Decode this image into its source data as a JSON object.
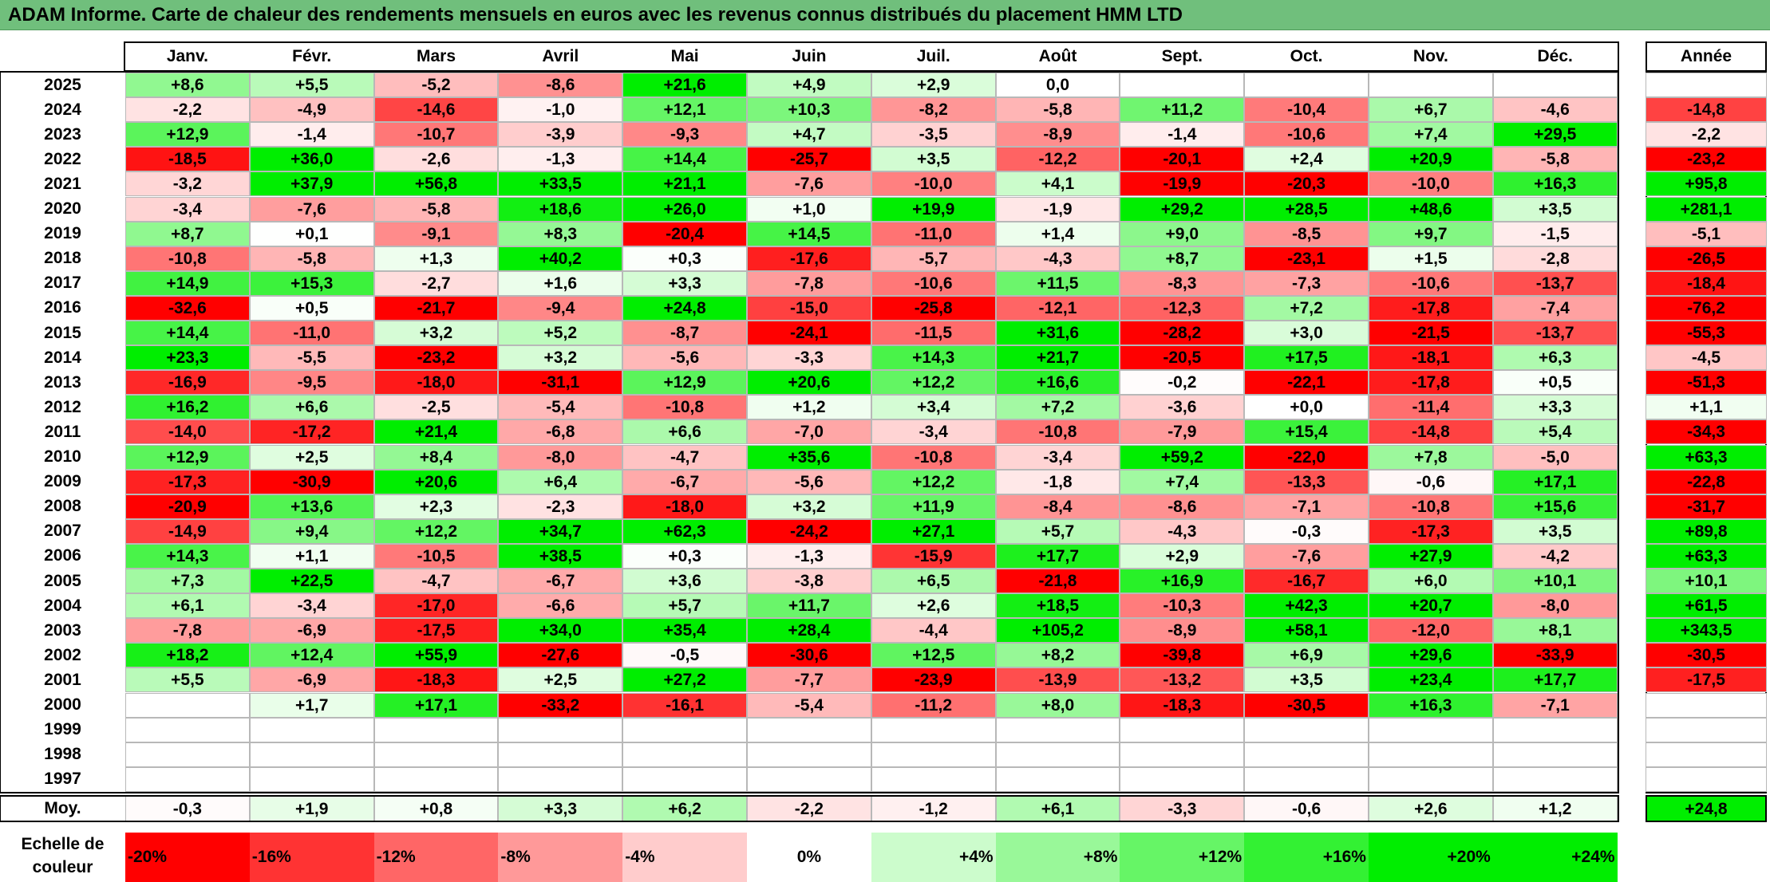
{
  "title": "ADAM Informe. Carte de chaleur des rendements mensuels en euros avec les revenus connus distribués du placement HMM LTD",
  "chart_data": {
    "type": "heatmap",
    "columns": [
      "Janv.",
      "Févr.",
      "Mars",
      "Avril",
      "Mai",
      "Juin",
      "Juil.",
      "Août",
      "Sept.",
      "Oct.",
      "Nov.",
      "Déc."
    ],
    "year_label": "Année",
    "rows": [
      {
        "label": "2025",
        "values": [
          "+8,6",
          "+5,5",
          "-5,2",
          "-8,6",
          "+21,6",
          "+4,9",
          "+2,9",
          "0,0",
          "",
          "",
          "",
          ""
        ],
        "year": ""
      },
      {
        "label": "2024",
        "values": [
          "-2,2",
          "-4,9",
          "-14,6",
          "-1,0",
          "+12,1",
          "+10,3",
          "-8,2",
          "-5,8",
          "+11,2",
          "-10,4",
          "+6,7",
          "-4,6"
        ],
        "year": "-14,8"
      },
      {
        "label": "2023",
        "values": [
          "+12,9",
          "-1,4",
          "-10,7",
          "-3,9",
          "-9,3",
          "+4,7",
          "-3,5",
          "-8,9",
          "-1,4",
          "-10,6",
          "+7,4",
          "+29,5"
        ],
        "year": "-2,2"
      },
      {
        "label": "2022",
        "values": [
          "-18,5",
          "+36,0",
          "-2,6",
          "-1,3",
          "+14,4",
          "-25,7",
          "+3,5",
          "-12,2",
          "-20,1",
          "+2,4",
          "+20,9",
          "-5,8"
        ],
        "year": "-23,2"
      },
      {
        "label": "2021",
        "values": [
          "-3,2",
          "+37,9",
          "+56,8",
          "+33,5",
          "+21,1",
          "-7,6",
          "-10,0",
          "+4,1",
          "-19,9",
          "-20,3",
          "-10,0",
          "+16,3"
        ],
        "year": "+95,8"
      },
      {
        "label": "2020",
        "values": [
          "-3,4",
          "-7,6",
          "-5,8",
          "+18,6",
          "+26,0",
          "+1,0",
          "+19,9",
          "-1,9",
          "+29,2",
          "+28,5",
          "+48,6",
          "+3,5"
        ],
        "year": "+281,1"
      },
      {
        "label": "2019",
        "values": [
          "+8,7",
          "+0,1",
          "-9,1",
          "+8,3",
          "-20,4",
          "+14,5",
          "-11,0",
          "+1,4",
          "+9,0",
          "-8,5",
          "+9,7",
          "-1,5"
        ],
        "year": "-5,1"
      },
      {
        "label": "2018",
        "values": [
          "-10,8",
          "-5,8",
          "+1,3",
          "+40,2",
          "+0,3",
          "-17,6",
          "-5,7",
          "-4,3",
          "+8,7",
          "-23,1",
          "+1,5",
          "-2,8"
        ],
        "year": "-26,5"
      },
      {
        "label": "2017",
        "values": [
          "+14,9",
          "+15,3",
          "-2,7",
          "+1,6",
          "+3,3",
          "-7,8",
          "-10,6",
          "+11,5",
          "-8,3",
          "-7,3",
          "-10,6",
          "-13,7"
        ],
        "year": "-18,4"
      },
      {
        "label": "2016",
        "values": [
          "-32,6",
          "+0,5",
          "-21,7",
          "-9,4",
          "+24,8",
          "-15,0",
          "-25,8",
          "-12,1",
          "-12,3",
          "+7,2",
          "-17,8",
          "-7,4"
        ],
        "year": "-76,2"
      },
      {
        "label": "2015",
        "values": [
          "+14,4",
          "-11,0",
          "+3,2",
          "+5,2",
          "-8,7",
          "-24,1",
          "-11,5",
          "+31,6",
          "-28,2",
          "+3,0",
          "-21,5",
          "-13,7"
        ],
        "year": "-55,3"
      },
      {
        "label": "2014",
        "values": [
          "+23,3",
          "-5,5",
          "-23,2",
          "+3,2",
          "-5,6",
          "-3,3",
          "+14,3",
          "+21,7",
          "-20,5",
          "+17,5",
          "-18,1",
          "+6,3"
        ],
        "year": "-4,5"
      },
      {
        "label": "2013",
        "values": [
          "-16,9",
          "-9,5",
          "-18,0",
          "-31,1",
          "+12,9",
          "+20,6",
          "+12,2",
          "+16,6",
          "-0,2",
          "-22,1",
          "-17,8",
          "+0,5"
        ],
        "year": "-51,3"
      },
      {
        "label": "2012",
        "values": [
          "+16,2",
          "+6,6",
          "-2,5",
          "-5,4",
          "-10,8",
          "+1,2",
          "+3,4",
          "+7,2",
          "-3,6",
          "+0,0",
          "-11,4",
          "+3,3"
        ],
        "year": "+1,1"
      },
      {
        "label": "2011",
        "values": [
          "-14,0",
          "-17,2",
          "+21,4",
          "-6,8",
          "+6,6",
          "-7,0",
          "-3,4",
          "-10,8",
          "-7,9",
          "+15,4",
          "-14,8",
          "+5,4"
        ],
        "year": "-34,3"
      },
      {
        "label": "2010",
        "values": [
          "+12,9",
          "+2,5",
          "+8,4",
          "-8,0",
          "-4,7",
          "+35,6",
          "-10,8",
          "-3,4",
          "+59,2",
          "-22,0",
          "+7,8",
          "-5,0"
        ],
        "year": "+63,3"
      },
      {
        "label": "2009",
        "values": [
          "-17,3",
          "-30,9",
          "+20,6",
          "+6,4",
          "-6,7",
          "-5,6",
          "+12,2",
          "-1,8",
          "+7,4",
          "-13,3",
          "-0,6",
          "+17,1"
        ],
        "year": "-22,8"
      },
      {
        "label": "2008",
        "values": [
          "-20,9",
          "+13,6",
          "+2,3",
          "-2,3",
          "-18,0",
          "+3,2",
          "+11,9",
          "-8,4",
          "-8,6",
          "-7,1",
          "-10,8",
          "+15,6"
        ],
        "year": "-31,7"
      },
      {
        "label": "2007",
        "values": [
          "-14,9",
          "+9,4",
          "+12,2",
          "+34,7",
          "+62,3",
          "-24,2",
          "+27,1",
          "+5,7",
          "-4,3",
          "-0,3",
          "-17,3",
          "+3,5"
        ],
        "year": "+89,8"
      },
      {
        "label": "2006",
        "values": [
          "+14,3",
          "+1,1",
          "-10,5",
          "+38,5",
          "+0,3",
          "-1,3",
          "-15,9",
          "+17,7",
          "+2,9",
          "-7,6",
          "+27,9",
          "-4,2"
        ],
        "year": "+63,3"
      },
      {
        "label": "2005",
        "values": [
          "+7,3",
          "+22,5",
          "-4,7",
          "-6,7",
          "+3,6",
          "-3,8",
          "+6,5",
          "-21,8",
          "+16,9",
          "-16,7",
          "+6,0",
          "+10,1"
        ],
        "year": "+10,1"
      },
      {
        "label": "2004",
        "values": [
          "+6,1",
          "-3,4",
          "-17,0",
          "-6,6",
          "+5,7",
          "+11,7",
          "+2,6",
          "+18,5",
          "-10,3",
          "+42,3",
          "+20,7",
          "-8,0"
        ],
        "year": "+61,5"
      },
      {
        "label": "2003",
        "values": [
          "-7,8",
          "-6,9",
          "-17,5",
          "+34,0",
          "+35,4",
          "+28,4",
          "-4,4",
          "+105,2",
          "-8,9",
          "+58,1",
          "-12,0",
          "+8,1"
        ],
        "year": "+343,5"
      },
      {
        "label": "2002",
        "values": [
          "+18,2",
          "+12,4",
          "+55,9",
          "-27,6",
          "-0,5",
          "-30,6",
          "+12,5",
          "+8,2",
          "-39,8",
          "+6,9",
          "+29,6",
          "-33,9"
        ],
        "year": "-30,5"
      },
      {
        "label": "2001",
        "values": [
          "+5,5",
          "-6,9",
          "-18,3",
          "+2,5",
          "+27,2",
          "-7,7",
          "-23,9",
          "-13,9",
          "-13,2",
          "+3,5",
          "+23,4",
          "+17,7"
        ],
        "year": "-17,5"
      },
      {
        "label": "2000",
        "values": [
          "",
          "+1,7",
          "+17,1",
          "-33,2",
          "-16,1",
          "-5,4",
          "-11,2",
          "+8,0",
          "-18,3",
          "-30,5",
          "+16,3",
          "-7,1"
        ],
        "year": ""
      },
      {
        "label": "1999",
        "values": [
          "",
          "",
          "",
          "",
          "",
          "",
          "",
          "",
          "",
          "",
          "",
          ""
        ],
        "year": ""
      },
      {
        "label": "1998",
        "values": [
          "",
          "",
          "",
          "",
          "",
          "",
          "",
          "",
          "",
          "",
          "",
          ""
        ],
        "year": ""
      },
      {
        "label": "1997",
        "values": [
          "",
          "",
          "",
          "",
          "",
          "",
          "",
          "",
          "",
          "",
          "",
          ""
        ],
        "year": ""
      }
    ],
    "average": {
      "label": "Moy.",
      "values": [
        "-0,3",
        "+1,9",
        "+0,8",
        "+3,3",
        "+6,2",
        "-2,2",
        "-1,2",
        "+6,1",
        "-3,3",
        "-0,6",
        "+2,6",
        "+1,2"
      ],
      "year": "+24,8"
    },
    "scale": {
      "label": "Echelle de couleur",
      "steps": [
        {
          "label": "-20%",
          "value": -20
        },
        {
          "label": "-16%",
          "value": -16
        },
        {
          "label": "-12%",
          "value": -12
        },
        {
          "label": "-8%",
          "value": -8
        },
        {
          "label": "-4%",
          "value": -4
        },
        {
          "label": "0%",
          "value": 0
        },
        {
          "label": "+4%",
          "value": 4
        },
        {
          "label": "+8%",
          "value": 8
        },
        {
          "label": "+12%",
          "value": 12
        },
        {
          "label": "+16%",
          "value": 16
        },
        {
          "label": "+20%",
          "value": 20
        },
        {
          "label": "+24%",
          "value": 24
        }
      ]
    },
    "colors": {
      "negative_max": "#ff0000",
      "neutral": "#ffffff",
      "positive_max": "#00ee00"
    }
  }
}
